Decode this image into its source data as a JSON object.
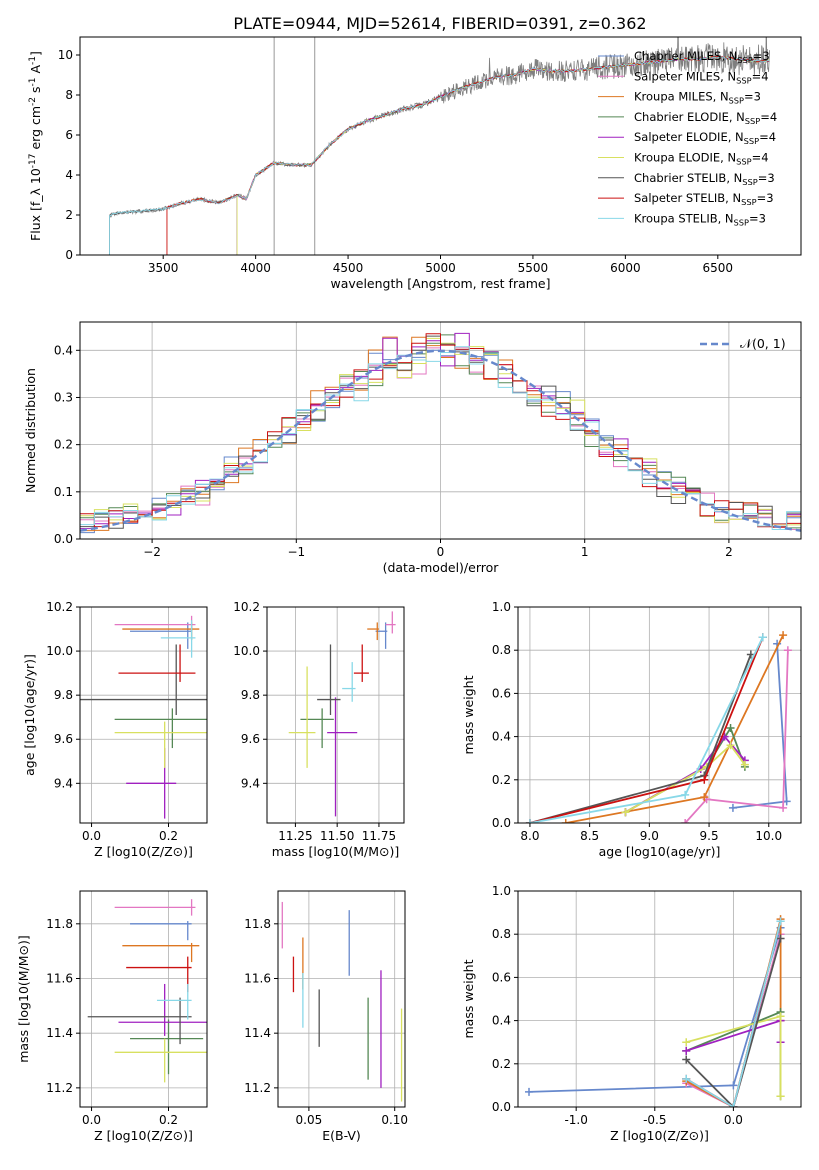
{
  "figure": {
    "title": "PLATE=0944, MJD=52614, FIBERID=0391, z=0.362"
  },
  "model_names": [
    "Chabrier MILES",
    "Salpeter MILES",
    "Kroupa MILES",
    "Chabrier ELODIE",
    "Salpeter ELODIE",
    "Kroupa ELODIE",
    "Chabrier STELIB",
    "Salpeter STELIB",
    "Kroupa STELIB"
  ],
  "model_colors": [
    "#6688cc",
    "#e377c2",
    "#dd7722",
    "#558855",
    "#a020c0",
    "#d8e060",
    "#555555",
    "#cc1111",
    "#88d8e8"
  ],
  "chart_data": [
    {
      "id": "spectrum",
      "type": "line",
      "xlabel": "wavelength [Angstrom, rest frame]",
      "ylabel": "Flux [f_λ 10^{-17} erg cm^{-2} s^{-1} A^{-1}]",
      "xlim": [
        3050,
        6950
      ],
      "ylim": [
        0,
        10.9
      ],
      "xticks": [
        3500,
        4000,
        4500,
        5000,
        5500,
        6000,
        6500
      ],
      "yticks": [
        0,
        2,
        4,
        6,
        8,
        10
      ],
      "legend_position": "upper-right",
      "legend": [
        {
          "name": "Chabrier MILES, N_SSP=3"
        },
        {
          "name": "Salpeter MILES, N_SSP=4"
        },
        {
          "name": "Kroupa MILES, N_SSP=3"
        },
        {
          "name": "Chabrier ELODIE, N_SSP=4"
        },
        {
          "name": "Salpeter ELODIE, N_SSP=4"
        },
        {
          "name": "Kroupa ELODIE, N_SSP=4"
        },
        {
          "name": "Chabrier STELIB, N_SSP=3"
        },
        {
          "name": "Salpeter STELIB, N_SSP=3"
        },
        {
          "name": "Kroupa STELIB, N_SSP=3"
        }
      ],
      "model_start_wavelength": [
        3520,
        3520,
        3520,
        3900,
        3900,
        3900,
        3210,
        3520,
        3210
      ],
      "continuum": {
        "x": [
          3210,
          3250,
          3400,
          3500,
          3600,
          3700,
          3800,
          3900,
          3950,
          4000,
          4100,
          4200,
          4300,
          4400,
          4500,
          4600,
          4700,
          4800,
          4900,
          5000,
          5100,
          5200,
          5300,
          5400,
          5500,
          5600,
          5700,
          5800,
          5900,
          6000,
          6100,
          6200,
          6300,
          6400,
          6500,
          6600,
          6700,
          6780
        ],
        "y": [
          2.0,
          2.1,
          2.2,
          2.3,
          2.6,
          2.8,
          2.6,
          3.0,
          2.8,
          4.0,
          4.6,
          4.5,
          4.5,
          5.5,
          6.3,
          6.7,
          7.0,
          7.3,
          7.5,
          7.9,
          8.3,
          8.6,
          8.9,
          9.0,
          9.3,
          9.2,
          9.2,
          9.3,
          9.4,
          9.5,
          9.6,
          9.7,
          9.8,
          9.8,
          9.9,
          9.8,
          9.7,
          9.7
        ]
      }
    },
    {
      "id": "residuals",
      "type": "bar",
      "xlabel": "(data-model)/error",
      "ylabel": "Normed distribution",
      "xlim": [
        -2.5,
        2.5
      ],
      "ylim": [
        0,
        0.46
      ],
      "xticks": [
        -2,
        -1,
        0,
        1,
        2
      ],
      "yticks": [
        0.0,
        0.1,
        0.2,
        0.3,
        0.4
      ],
      "legend_position": "upper-right",
      "legend": [
        {
          "name": "𝒩(0, 1)"
        }
      ],
      "bin_width": 0.1,
      "reference_curve": "gaussian mean 0, sigma 1"
    },
    {
      "id": "age_vs_Z",
      "type": "scatter",
      "xlabel": "Z [log10(Z/Z⊙)]",
      "ylabel": "age  [log10(age/yr)]",
      "xlim": [
        -0.03,
        0.3
      ],
      "ylim": [
        9.22,
        10.2
      ],
      "xticks": [
        0.0,
        0.2
      ],
      "yticks": [
        9.4,
        9.6,
        9.8,
        10.0,
        10.2
      ],
      "points": [
        {
          "x": 0.25,
          "xerr": [
            0.15,
            0.01
          ],
          "y": 10.09,
          "yerr": [
            0.08,
            0.04
          ]
        },
        {
          "x": 0.26,
          "xerr": [
            0.2,
            0.01
          ],
          "y": 10.12,
          "yerr": [
            0.03,
            0.04
          ]
        },
        {
          "x": 0.26,
          "xerr": [
            0.18,
            0.02
          ],
          "y": 10.1,
          "yerr": [
            0.05,
            0.03
          ]
        },
        {
          "x": 0.21,
          "xerr": [
            0.15,
            0.09
          ],
          "y": 9.69,
          "yerr": [
            0.13,
            0.05
          ]
        },
        {
          "x": 0.19,
          "xerr": [
            0.1,
            0.03
          ],
          "y": 9.4,
          "yerr": [
            0.16,
            0.16
          ]
        },
        {
          "x": 0.19,
          "xerr": [
            0.13,
            0.11
          ],
          "y": 9.63,
          "yerr": [
            0.16,
            0.05
          ]
        },
        {
          "x": 0.22,
          "xerr": [
            0.3,
            0.08
          ],
          "y": 9.78,
          "yerr": [
            0.07,
            0.25
          ]
        },
        {
          "x": 0.23,
          "xerr": [
            0.16,
            0.04
          ],
          "y": 9.9,
          "yerr": [
            0.04,
            0.13
          ]
        },
        {
          "x": 0.26,
          "xerr": [
            0.08,
            0.01
          ],
          "y": 10.06,
          "yerr": [
            0.09,
            0.08
          ]
        }
      ]
    },
    {
      "id": "age_vs_mass",
      "type": "scatter",
      "xlabel": "mass [log10(M/M⊙)]",
      "ylabel": "",
      "xlim": [
        11.08,
        11.9
      ],
      "ylim": [
        9.22,
        10.2
      ],
      "xticks": [
        11.25,
        11.5,
        11.75
      ],
      "yticks": [
        9.4,
        9.6,
        9.8,
        10.0,
        10.2
      ],
      "points": [
        {
          "x": 11.79,
          "xerr": [
            0.06,
            0.01
          ],
          "y": 10.09,
          "yerr": [
            0.08,
            0.04
          ]
        },
        {
          "x": 11.83,
          "xerr": [
            0.04,
            0.02
          ],
          "y": 10.12,
          "yerr": [
            0.04,
            0.06
          ]
        },
        {
          "x": 11.74,
          "xerr": [
            0.06,
            0.01
          ],
          "y": 10.1,
          "yerr": [
            0.05,
            0.03
          ]
        },
        {
          "x": 11.41,
          "xerr": [
            0.13,
            0.07
          ],
          "y": 9.69,
          "yerr": [
            0.13,
            0.05
          ]
        },
        {
          "x": 11.49,
          "xerr": [
            0.05,
            0.13
          ],
          "y": 9.63,
          "yerr": [
            0.38,
            0.16
          ]
        },
        {
          "x": 11.32,
          "xerr": [
            0.11,
            0.05
          ],
          "y": 9.63,
          "yerr": [
            0.16,
            0.3
          ]
        },
        {
          "x": 11.46,
          "xerr": [
            0.08,
            0.06
          ],
          "y": 9.78,
          "yerr": [
            0.07,
            0.25
          ]
        },
        {
          "x": 11.65,
          "xerr": [
            0.05,
            0.04
          ],
          "y": 9.9,
          "yerr": [
            0.04,
            0.13
          ]
        },
        {
          "x": 11.59,
          "xerr": [
            0.06,
            0.02
          ],
          "y": 9.83,
          "yerr": [
            0.06,
            0.12
          ]
        }
      ]
    },
    {
      "id": "weights_vs_age",
      "type": "line",
      "xlabel": "age  [log10(age/yr)]",
      "ylabel": "mass weight",
      "xlim": [
        7.9,
        10.27
      ],
      "ylim": [
        0,
        1.0
      ],
      "xticks": [
        8.0,
        8.5,
        9.0,
        9.5,
        10.0
      ],
      "yticks": [
        0.0,
        0.2,
        0.4,
        0.6,
        0.8,
        1.0
      ],
      "series": [
        {
          "x": [
            9.7,
            10.15,
            10.07
          ],
          "y": [
            0.07,
            0.1,
            0.83
          ]
        },
        {
          "x": [
            9.3,
            9.48,
            10.12,
            10.16
          ],
          "y": [
            0.0,
            0.11,
            0.07,
            0.8
          ]
        },
        {
          "x": [
            8.3,
            9.46,
            10.12
          ],
          "y": [
            0.0,
            0.12,
            0.87
          ]
        },
        {
          "x": [
            8.8,
            9.48,
            9.68,
            9.8
          ],
          "y": [
            0.05,
            0.26,
            0.44,
            0.26
          ]
        },
        {
          "x": [
            8.8,
            9.43,
            9.63,
            9.8
          ],
          "y": [
            0.05,
            0.25,
            0.4,
            0.29
          ]
        },
        {
          "x": [
            8.8,
            9.48,
            9.68,
            9.8
          ],
          "y": [
            0.05,
            0.26,
            0.36,
            0.27
          ]
        },
        {
          "x": [
            8.0,
            9.46,
            9.85
          ],
          "y": [
            0.0,
            0.22,
            0.78
          ]
        },
        {
          "x": [
            8.0,
            9.46,
            9.95
          ],
          "y": [
            0.0,
            0.2,
            0.86
          ]
        },
        {
          "x": [
            8.0,
            9.3,
            9.95
          ],
          "y": [
            0.0,
            0.13,
            0.86
          ]
        }
      ]
    },
    {
      "id": "mass_vs_Z",
      "type": "scatter",
      "xlabel": "Z [log10(Z/Z⊙)]",
      "ylabel": "mass [log10(M/M⊙)]",
      "xlim": [
        -0.03,
        0.3
      ],
      "ylim": [
        11.13,
        11.92
      ],
      "xticks": [
        0.0,
        0.2
      ],
      "yticks": [
        11.2,
        11.4,
        11.6,
        11.8
      ],
      "points": [
        {
          "x": 0.25,
          "xerr": [
            0.15,
            0.01
          ],
          "y": 11.8,
          "yerr": [
            0.06,
            0.01
          ]
        },
        {
          "x": 0.26,
          "xerr": [
            0.2,
            0.01
          ],
          "y": 11.86,
          "yerr": [
            0.03,
            0.03
          ]
        },
        {
          "x": 0.26,
          "xerr": [
            0.18,
            0.02
          ],
          "y": 11.72,
          "yerr": [
            0.06,
            0.01
          ]
        },
        {
          "x": 0.2,
          "xerr": [
            0.1,
            0.09
          ],
          "y": 11.38,
          "yerr": [
            0.13,
            0.07
          ]
        },
        {
          "x": 0.19,
          "xerr": [
            0.12,
            0.11
          ],
          "y": 11.44,
          "yerr": [
            0.05,
            0.14
          ]
        },
        {
          "x": 0.19,
          "xerr": [
            0.13,
            0.11
          ],
          "y": 11.33,
          "yerr": [
            0.11,
            0.05
          ]
        },
        {
          "x": 0.23,
          "xerr": [
            0.24,
            0.03
          ],
          "y": 11.46,
          "yerr": [
            0.1,
            0.07
          ]
        },
        {
          "x": 0.25,
          "xerr": [
            0.16,
            0.01
          ],
          "y": 11.64,
          "yerr": [
            0.09,
            0.04
          ]
        },
        {
          "x": 0.25,
          "xerr": [
            0.08,
            0.01
          ],
          "y": 11.52,
          "yerr": [
            0.07,
            0.06
          ]
        }
      ]
    },
    {
      "id": "mass_vs_ebv",
      "type": "scatter",
      "xlabel": "E(B-V)",
      "ylabel": "",
      "xlim": [
        0.032,
        0.106
      ],
      "ylim": [
        11.13,
        11.92
      ],
      "xticks": [
        0.05,
        0.1
      ],
      "yticks": [
        11.2,
        11.4,
        11.6,
        11.8
      ],
      "segments": [
        {
          "x": 0.0735,
          "ymin": 11.61,
          "ymax": 11.85
        },
        {
          "x": 0.0345,
          "ymin": 11.71,
          "ymax": 11.88
        },
        {
          "x": 0.0465,
          "ymin": 11.56,
          "ymax": 11.75
        },
        {
          "x": 0.0845,
          "ymin": 11.23,
          "ymax": 11.53
        },
        {
          "x": 0.092,
          "ymin": 11.2,
          "ymax": 11.63
        },
        {
          "x": 0.104,
          "ymin": 11.15,
          "ymax": 11.49
        },
        {
          "x": 0.056,
          "ymin": 11.35,
          "ymax": 11.56
        },
        {
          "x": 0.041,
          "ymin": 11.55,
          "ymax": 11.68
        },
        {
          "x": 0.0465,
          "ymin": 11.42,
          "ymax": 11.62
        }
      ]
    },
    {
      "id": "weights_vs_Z",
      "type": "line",
      "xlabel": "Z [log10(Z/Z⊙)]",
      "ylabel": "mass weight",
      "xlim": [
        -1.37,
        0.43
      ],
      "ylim": [
        0,
        1.0
      ],
      "xticks": [
        -1.0,
        -0.5,
        0.0
      ],
      "yticks": [
        0.0,
        0.2,
        0.4,
        0.6,
        0.8,
        1.0
      ],
      "series": [
        {
          "x": [
            -1.3,
            0.0,
            0.3
          ],
          "y": [
            0.07,
            0.1,
            0.83
          ]
        },
        {
          "x": [
            -0.3,
            0.0,
            0.3
          ],
          "y": [
            0.11,
            0.0,
            0.8
          ]
        },
        {
          "x": [
            -0.3,
            0.0,
            0.3,
            0.3
          ],
          "y": [
            0.12,
            0.0,
            0.87,
            0.4
          ]
        },
        {
          "x": [
            -0.3,
            0.3,
            0.3
          ],
          "y": [
            0.26,
            0.44,
            0.05
          ]
        },
        {
          "x": [
            -0.3,
            0.3,
            0.3
          ],
          "y": [
            0.26,
            0.4,
            0.3
          ]
        },
        {
          "x": [
            -0.3,
            0.3,
            0.3
          ],
          "y": [
            0.3,
            0.42,
            0.05
          ]
        },
        {
          "x": [
            -0.3,
            0.0,
            0.3
          ],
          "y": [
            0.22,
            0.0,
            0.78
          ]
        },
        {
          "x": [
            -0.3,
            0.0,
            0.3
          ],
          "y": [
            0.13,
            0.0,
            0.86
          ]
        },
        {
          "x": [
            -0.3,
            0.0,
            0.3
          ],
          "y": [
            0.13,
            0.0,
            0.86
          ]
        }
      ]
    }
  ]
}
